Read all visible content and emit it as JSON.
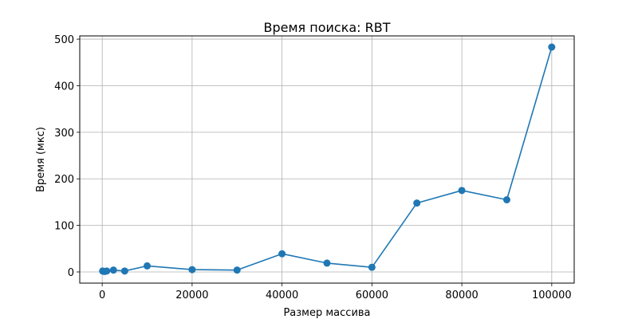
{
  "chart_data": {
    "type": "line",
    "title": "Время поиска: RBT",
    "xlabel": "Размер массива",
    "ylabel": "Время (мкс)",
    "x": [
      100,
      500,
      1000,
      2500,
      5000,
      10000,
      20000,
      30000,
      40000,
      50000,
      60000,
      70000,
      80000,
      90000,
      100000
    ],
    "series": [
      {
        "values": [
          2,
          1,
          2,
          4,
          2,
          13,
          5,
          4,
          39,
          19,
          10,
          148,
          175,
          155,
          483
        ]
      }
    ],
    "xlim": [
      -4995,
      104995
    ],
    "ylim": [
      -24,
      507
    ],
    "xticks": [
      0,
      20000,
      40000,
      60000,
      80000,
      100000
    ],
    "yticks": [
      0,
      100,
      200,
      300,
      400,
      500
    ],
    "grid": true,
    "line_color": "#1f77b4"
  }
}
